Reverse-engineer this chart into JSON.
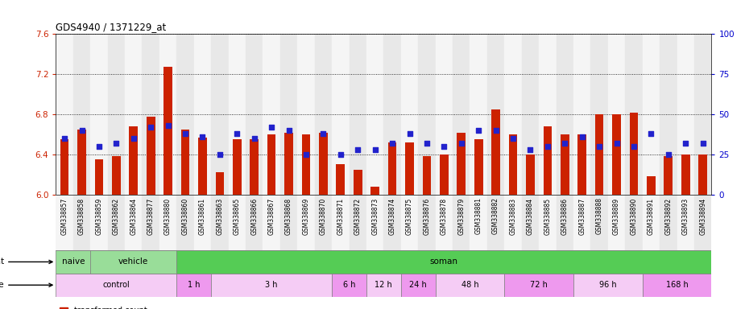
{
  "title": "GDS4940 / 1371229_at",
  "samples": [
    "GSM338857",
    "GSM338858",
    "GSM338859",
    "GSM338862",
    "GSM338864",
    "GSM338877",
    "GSM338880",
    "GSM338860",
    "GSM338861",
    "GSM338863",
    "GSM338865",
    "GSM338866",
    "GSM338867",
    "GSM338868",
    "GSM338869",
    "GSM338870",
    "GSM338871",
    "GSM338872",
    "GSM338873",
    "GSM338874",
    "GSM338875",
    "GSM338876",
    "GSM338878",
    "GSM338879",
    "GSM338881",
    "GSM338882",
    "GSM338883",
    "GSM338884",
    "GSM338885",
    "GSM338886",
    "GSM338887",
    "GSM338888",
    "GSM338889",
    "GSM338890",
    "GSM338891",
    "GSM338892",
    "GSM338893",
    "GSM338894"
  ],
  "bar_values": [
    6.55,
    6.65,
    6.35,
    6.38,
    6.68,
    6.78,
    7.27,
    6.65,
    6.57,
    6.22,
    6.55,
    6.55,
    6.6,
    6.62,
    6.6,
    6.62,
    6.3,
    6.25,
    6.08,
    6.52,
    6.52,
    6.38,
    6.4,
    6.62,
    6.55,
    6.85,
    6.6,
    6.4,
    6.68,
    6.6,
    6.6,
    6.8,
    6.8,
    6.82,
    6.18,
    6.38,
    6.4,
    6.4
  ],
  "percentile_values": [
    35,
    40,
    30,
    32,
    35,
    42,
    43,
    38,
    36,
    25,
    38,
    35,
    42,
    40,
    25,
    38,
    25,
    28,
    28,
    32,
    38,
    32,
    30,
    32,
    40,
    40,
    35,
    28,
    30,
    32,
    36,
    30,
    32,
    30,
    38,
    25,
    32,
    32
  ],
  "ylim_left": [
    6.0,
    7.6
  ],
  "ylim_right": [
    0,
    100
  ],
  "yticks_left": [
    6.0,
    6.4,
    6.8,
    7.2,
    7.6
  ],
  "yticks_right": [
    0,
    25,
    50,
    75,
    100
  ],
  "bar_color": "#cc2200",
  "dot_color": "#2222cc",
  "bar_bottom": 6.0,
  "agent_data": [
    {
      "label": "naive",
      "start": 0,
      "end": 2,
      "color": "#99dd99"
    },
    {
      "label": "vehicle",
      "start": 2,
      "end": 7,
      "color": "#99dd99"
    },
    {
      "label": "soman",
      "start": 7,
      "end": 38,
      "color": "#55cc55"
    }
  ],
  "time_groups": [
    {
      "label": "control",
      "start": 0,
      "end": 7
    },
    {
      "label": "1 h",
      "start": 7,
      "end": 9
    },
    {
      "label": "3 h",
      "start": 9,
      "end": 16
    },
    {
      "label": "6 h",
      "start": 16,
      "end": 18
    },
    {
      "label": "12 h",
      "start": 18,
      "end": 20
    },
    {
      "label": "24 h",
      "start": 20,
      "end": 22
    },
    {
      "label": "48 h",
      "start": 22,
      "end": 26
    },
    {
      "label": "72 h",
      "start": 26,
      "end": 30
    },
    {
      "label": "96 h",
      "start": 30,
      "end": 34
    },
    {
      "label": "168 h",
      "start": 34,
      "end": 38
    }
  ],
  "time_colors": [
    "#f5ccf5",
    "#ee99ee",
    "#f5ccf5",
    "#ee99ee",
    "#f5ccf5",
    "#ee99ee",
    "#f5ccf5",
    "#ee99ee",
    "#f5ccf5",
    "#ee99ee"
  ],
  "bg_colors": [
    "#f5f5f5",
    "#e8e8e8"
  ],
  "axis_label_color_left": "#cc2200",
  "axis_label_color_right": "#0000cc"
}
